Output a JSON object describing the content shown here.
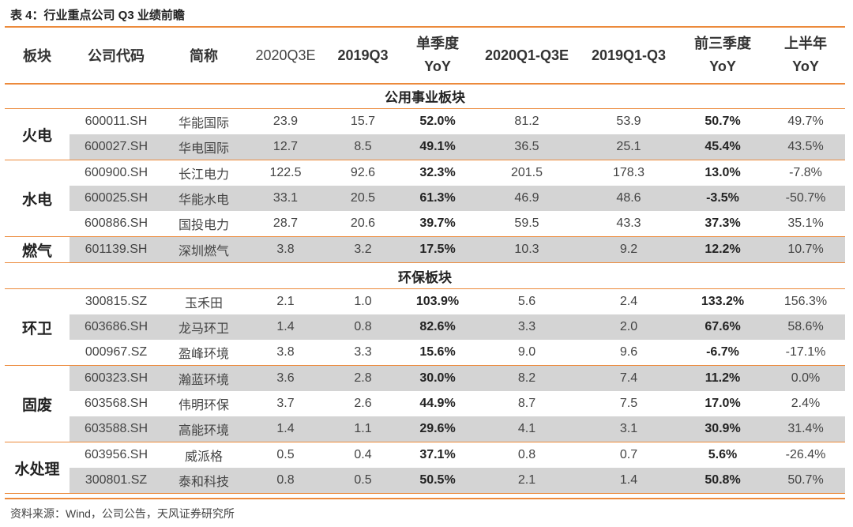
{
  "title": "表 4：行业重点公司 Q3 业绩前瞻",
  "headers": {
    "sector": "板块",
    "code": "公司代码",
    "name": "简称",
    "q3e_2020": "2020Q3E",
    "q3_2019": "2019Q3",
    "single_top": "单季度",
    "single_bottom": "YoY",
    "q1q3e_2020": "2020Q1-Q3E",
    "q1q3_2019": "2019Q1-Q3",
    "three_top": "前三季度",
    "three_bottom": "YoY",
    "half_top": "上半年",
    "half_bottom": "YoY"
  },
  "sections": [
    {
      "title": "公用事业板块",
      "groups": [
        {
          "name": "火电",
          "rows": [
            {
              "code": "600011.SH",
              "name": "华能国际",
              "q3e": "23.9",
              "q3": "15.7",
              "qyoy": "52.0%",
              "cume": "81.2",
              "cum": "53.9",
              "cumyoy": "50.7%",
              "h1yoy": "49.7%"
            },
            {
              "code": "600027.SH",
              "name": "华电国际",
              "q3e": "12.7",
              "q3": "8.5",
              "qyoy": "49.1%",
              "cume": "36.5",
              "cum": "25.1",
              "cumyoy": "45.4%",
              "h1yoy": "43.5%"
            }
          ]
        },
        {
          "name": "水电",
          "rows": [
            {
              "code": "600900.SH",
              "name": "长江电力",
              "q3e": "122.5",
              "q3": "92.6",
              "qyoy": "32.3%",
              "cume": "201.5",
              "cum": "178.3",
              "cumyoy": "13.0%",
              "h1yoy": "-7.8%"
            },
            {
              "code": "600025.SH",
              "name": "华能水电",
              "q3e": "33.1",
              "q3": "20.5",
              "qyoy": "61.3%",
              "cume": "46.9",
              "cum": "48.6",
              "cumyoy": "-3.5%",
              "h1yoy": "-50.7%"
            },
            {
              "code": "600886.SH",
              "name": "国投电力",
              "q3e": "28.7",
              "q3": "20.6",
              "qyoy": "39.7%",
              "cume": "59.5",
              "cum": "43.3",
              "cumyoy": "37.3%",
              "h1yoy": "35.1%"
            }
          ]
        },
        {
          "name": "燃气",
          "rows": [
            {
              "code": "601139.SH",
              "name": "深圳燃气",
              "q3e": "3.8",
              "q3": "3.2",
              "qyoy": "17.5%",
              "cume": "10.3",
              "cum": "9.2",
              "cumyoy": "12.2%",
              "h1yoy": "10.7%"
            }
          ]
        }
      ]
    },
    {
      "title": "环保板块",
      "groups": [
        {
          "name": "环卫",
          "rows": [
            {
              "code": "300815.SZ",
              "name": "玉禾田",
              "q3e": "2.1",
              "q3": "1.0",
              "qyoy": "103.9%",
              "cume": "5.6",
              "cum": "2.4",
              "cumyoy": "133.2%",
              "h1yoy": "156.3%"
            },
            {
              "code": "603686.SH",
              "name": "龙马环卫",
              "q3e": "1.4",
              "q3": "0.8",
              "qyoy": "82.6%",
              "cume": "3.3",
              "cum": "2.0",
              "cumyoy": "67.6%",
              "h1yoy": "58.6%"
            },
            {
              "code": "000967.SZ",
              "name": "盈峰环境",
              "q3e": "3.8",
              "q3": "3.3",
              "qyoy": "15.6%",
              "cume": "9.0",
              "cum": "9.6",
              "cumyoy": "-6.7%",
              "h1yoy": "-17.1%"
            }
          ]
        },
        {
          "name": "固废",
          "rows": [
            {
              "code": "600323.SH",
              "name": "瀚蓝环境",
              "q3e": "3.6",
              "q3": "2.8",
              "qyoy": "30.0%",
              "cume": "8.2",
              "cum": "7.4",
              "cumyoy": "11.2%",
              "h1yoy": "0.0%"
            },
            {
              "code": "603568.SH",
              "name": "伟明环保",
              "q3e": "3.7",
              "q3": "2.6",
              "qyoy": "44.9%",
              "cume": "8.7",
              "cum": "7.5",
              "cumyoy": "17.0%",
              "h1yoy": "2.4%"
            },
            {
              "code": "603588.SH",
              "name": "高能环境",
              "q3e": "1.4",
              "q3": "1.1",
              "qyoy": "29.6%",
              "cume": "4.1",
              "cum": "3.1",
              "cumyoy": "30.9%",
              "h1yoy": "31.4%"
            }
          ]
        },
        {
          "name": "水处理",
          "rows": [
            {
              "code": "603956.SH",
              "name": "威派格",
              "q3e": "0.5",
              "q3": "0.4",
              "qyoy": "37.1%",
              "cume": "0.8",
              "cum": "0.7",
              "cumyoy": "5.6%",
              "h1yoy": "-26.4%"
            },
            {
              "code": "300801.SZ",
              "name": "泰和科技",
              "q3e": "0.8",
              "q3": "0.5",
              "qyoy": "50.5%",
              "cume": "2.1",
              "cum": "1.4",
              "cumyoy": "50.8%",
              "h1yoy": "50.7%"
            }
          ]
        }
      ]
    }
  ],
  "source": "资料来源：Wind，公司公告，天风证券研究所",
  "colors": {
    "accent": "#ec8a3b",
    "row_shade": "#d4d4d4"
  }
}
